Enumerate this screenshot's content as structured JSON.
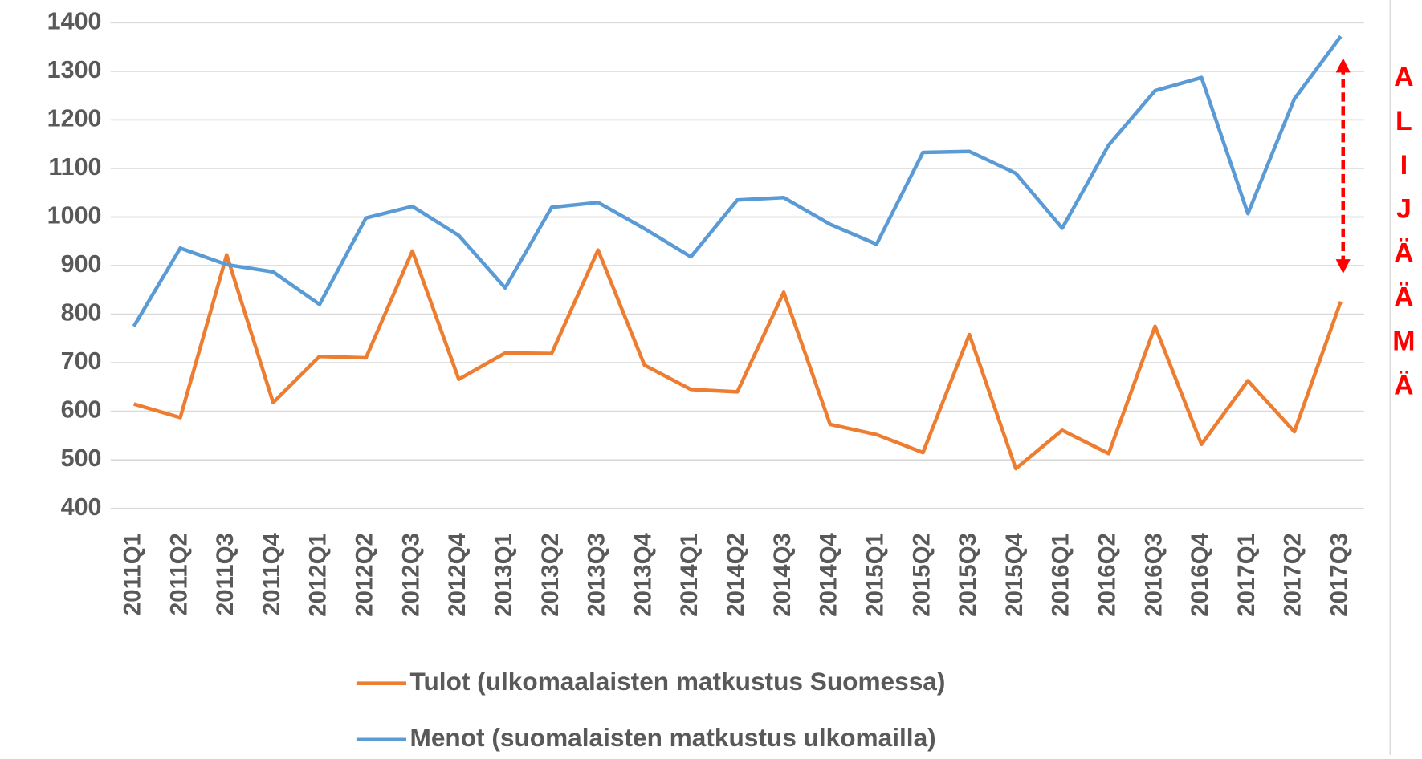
{
  "chart_data": {
    "type": "line",
    "categories": [
      "2011Q1",
      "2011Q2",
      "2011Q3",
      "2011Q4",
      "2012Q1",
      "2012Q2",
      "2012Q3",
      "2012Q4",
      "2013Q1",
      "2013Q2",
      "2013Q3",
      "2013Q4",
      "2014Q1",
      "2014Q2",
      "2014Q3",
      "2014Q4",
      "2015Q1",
      "2015Q2",
      "2015Q3",
      "2015Q4",
      "2016Q1",
      "2016Q2",
      "2016Q3",
      "2016Q4",
      "2017Q1",
      "2017Q2",
      "2017Q3"
    ],
    "series": [
      {
        "name": "Tulot (ulkomaalaisten matkustus Suomessa)",
        "color": "#ed7d31",
        "values": [
          615,
          587,
          922,
          618,
          713,
          710,
          930,
          666,
          720,
          719,
          932,
          695,
          645,
          640,
          845,
          573,
          552,
          515,
          758,
          482,
          561,
          513,
          775,
          532,
          663,
          558,
          826
        ]
      },
      {
        "name": "Menot (suomalaisten matkustus ulkomailla)",
        "color": "#5b9bd5",
        "values": [
          775,
          936,
          902,
          887,
          820,
          998,
          1022,
          962,
          854,
          1020,
          1030,
          976,
          918,
          1035,
          1040,
          985,
          944,
          1133,
          1135,
          1090,
          977,
          1148,
          1260,
          1287,
          1007,
          1243,
          1372
        ]
      }
    ],
    "ylim": [
      400,
      1400
    ],
    "yticks": [
      400,
      500,
      600,
      700,
      800,
      900,
      1000,
      1100,
      1200,
      1300,
      1400
    ],
    "grid": true,
    "legend": "bottom",
    "annotation": "ALIJÄÄMÄ"
  }
}
